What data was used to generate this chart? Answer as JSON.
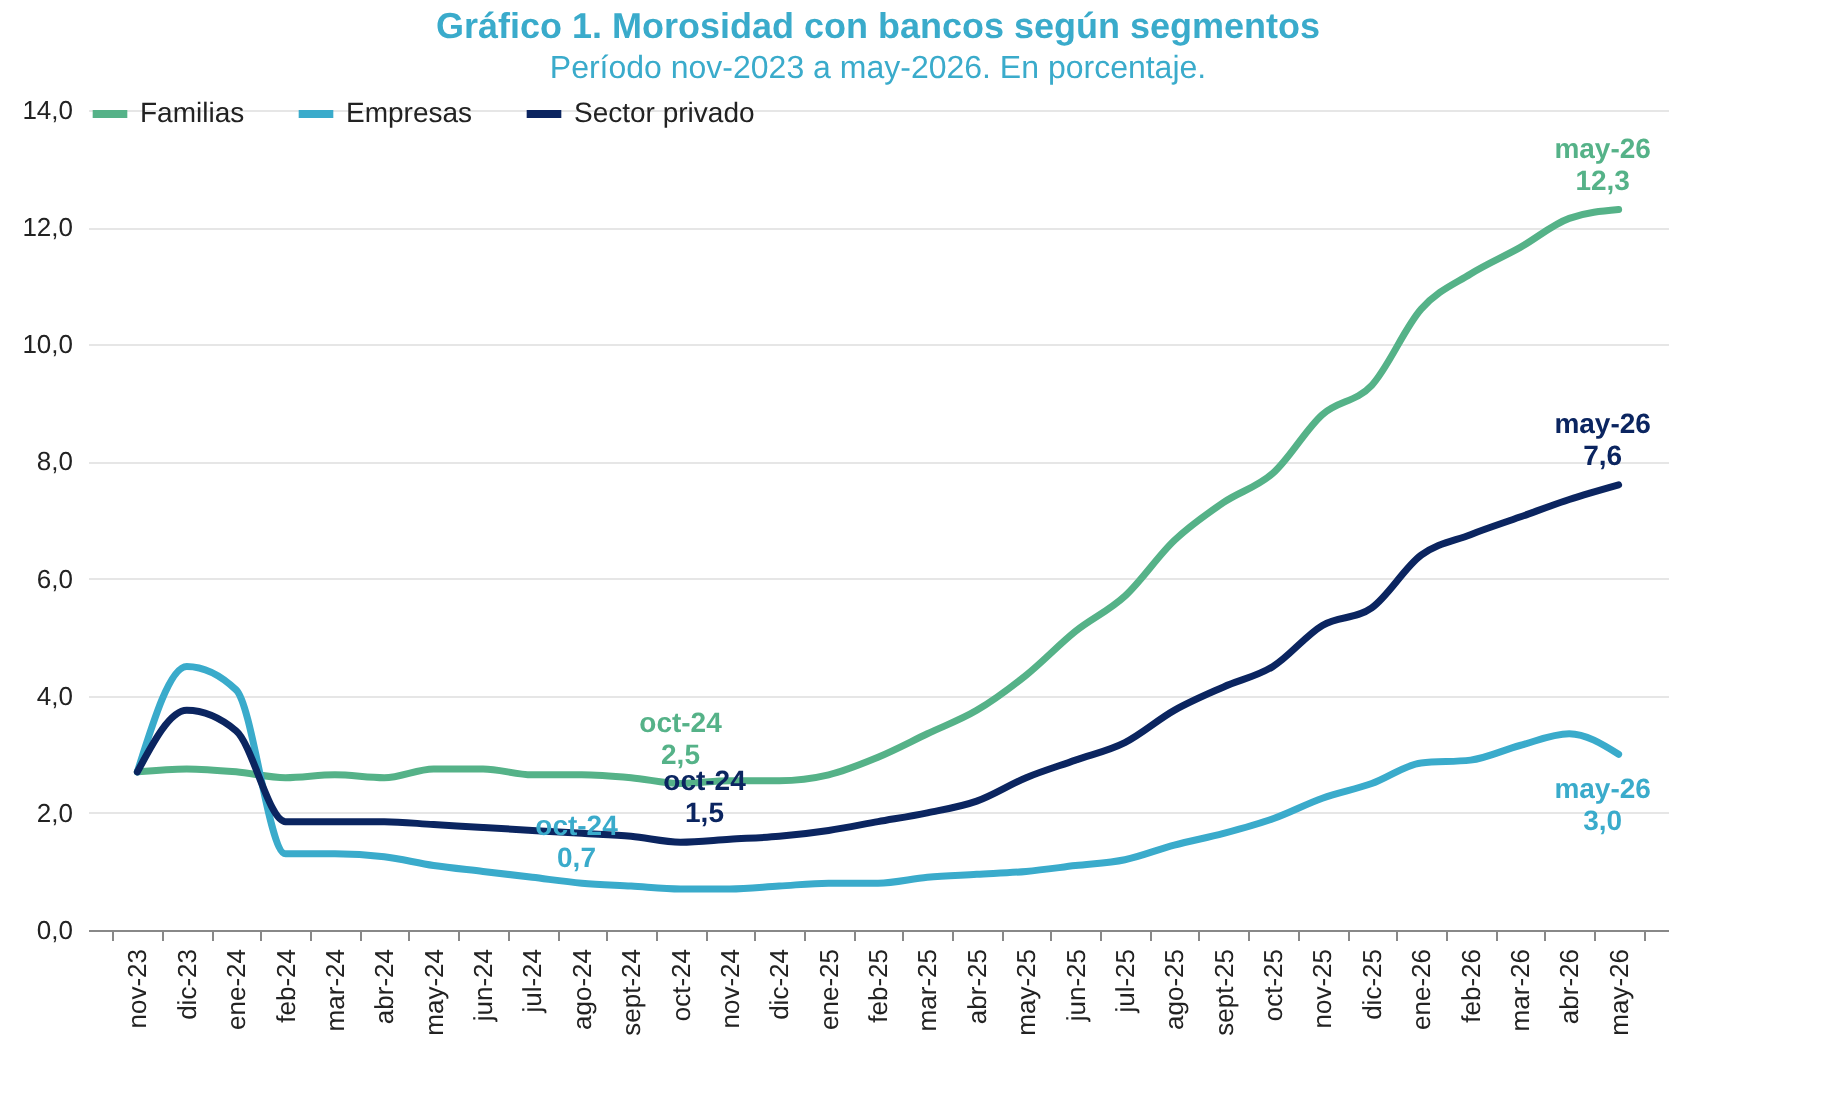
{
  "chart_data": {
    "type": "line",
    "title": "Gráfico 1. Morosidad con bancos según segmentos",
    "subtitle": "Período nov-2023 a may-2026. En porcentaje.",
    "categories": [
      "nov-23",
      "dic-23",
      "ene-24",
      "feb-24",
      "mar-24",
      "abr-24",
      "may-24",
      "jun-24",
      "jul-24",
      "ago-24",
      "sept-24",
      "oct-24",
      "nov-24",
      "dic-24",
      "ene-25",
      "feb-25",
      "mar-25",
      "abr-25",
      "may-25",
      "jun-25",
      "jul-25",
      "ago-25",
      "sept-25",
      "oct-25",
      "nov-25",
      "dic-25",
      "ene-26",
      "feb-26",
      "mar-26",
      "abr-26",
      "may-26"
    ],
    "series": [
      {
        "name": "Familias",
        "color": "#55b288",
        "values": [
          2.7,
          2.75,
          2.7,
          2.6,
          2.65,
          2.6,
          2.75,
          2.75,
          2.65,
          2.65,
          2.6,
          2.5,
          2.55,
          2.55,
          2.65,
          2.95,
          3.35,
          3.75,
          4.35,
          5.1,
          5.7,
          6.65,
          7.3,
          7.8,
          8.8,
          9.3,
          10.6,
          11.2,
          11.65,
          12.15,
          12.3
        ]
      },
      {
        "name": "Empresas",
        "color": "#3aabcb",
        "values": [
          2.7,
          4.5,
          4.1,
          1.3,
          1.3,
          1.25,
          1.1,
          1.0,
          0.9,
          0.8,
          0.75,
          0.7,
          0.7,
          0.75,
          0.8,
          0.8,
          0.9,
          0.95,
          1.0,
          1.1,
          1.2,
          1.45,
          1.65,
          1.9,
          2.25,
          2.5,
          2.85,
          2.9,
          3.15,
          3.35,
          3.0
        ]
      },
      {
        "name": "Sector privado",
        "color": "#0b2560",
        "values": [
          2.7,
          3.75,
          3.4,
          1.85,
          1.85,
          1.85,
          1.8,
          1.75,
          1.7,
          1.65,
          1.6,
          1.5,
          1.55,
          1.6,
          1.7,
          1.85,
          2.0,
          2.2,
          2.6,
          2.9,
          3.2,
          3.75,
          4.15,
          4.5,
          5.2,
          5.5,
          6.4,
          6.75,
          7.05,
          7.35,
          7.6
        ]
      }
    ],
    "annotations": [
      {
        "text": "oct-24\n2,5",
        "x": "oct-24",
        "y": 2.5
      },
      {
        "text": "oct-24\n0,7",
        "x": "oct-24",
        "y": 0.7
      },
      {
        "text": "oct-24\n1,5",
        "x": "oct-24",
        "y": 1.5
      },
      {
        "text": "may-26\n12,3",
        "x": "may-26",
        "y": 12.3
      },
      {
        "text": "may-26\n7,6",
        "x": "may-26",
        "y": 7.6
      },
      {
        "text": "may-26\n3,0",
        "x": "may-26",
        "y": 3.0
      }
    ],
    "ylim": [
      0,
      14
    ],
    "yticks": [
      {
        "value": 0,
        "label": "0,0"
      },
      {
        "value": 2,
        "label": "2,0"
      },
      {
        "value": 4,
        "label": "4,0"
      },
      {
        "value": 6,
        "label": "6,0"
      },
      {
        "value": 8,
        "label": "8,0"
      },
      {
        "value": 10,
        "label": "10,0"
      },
      {
        "value": 12,
        "label": "12,0"
      },
      {
        "value": 14,
        "label": "14,0"
      }
    ],
    "grid": "y",
    "legend": "top",
    "line_style": "solid",
    "marker": "none"
  }
}
